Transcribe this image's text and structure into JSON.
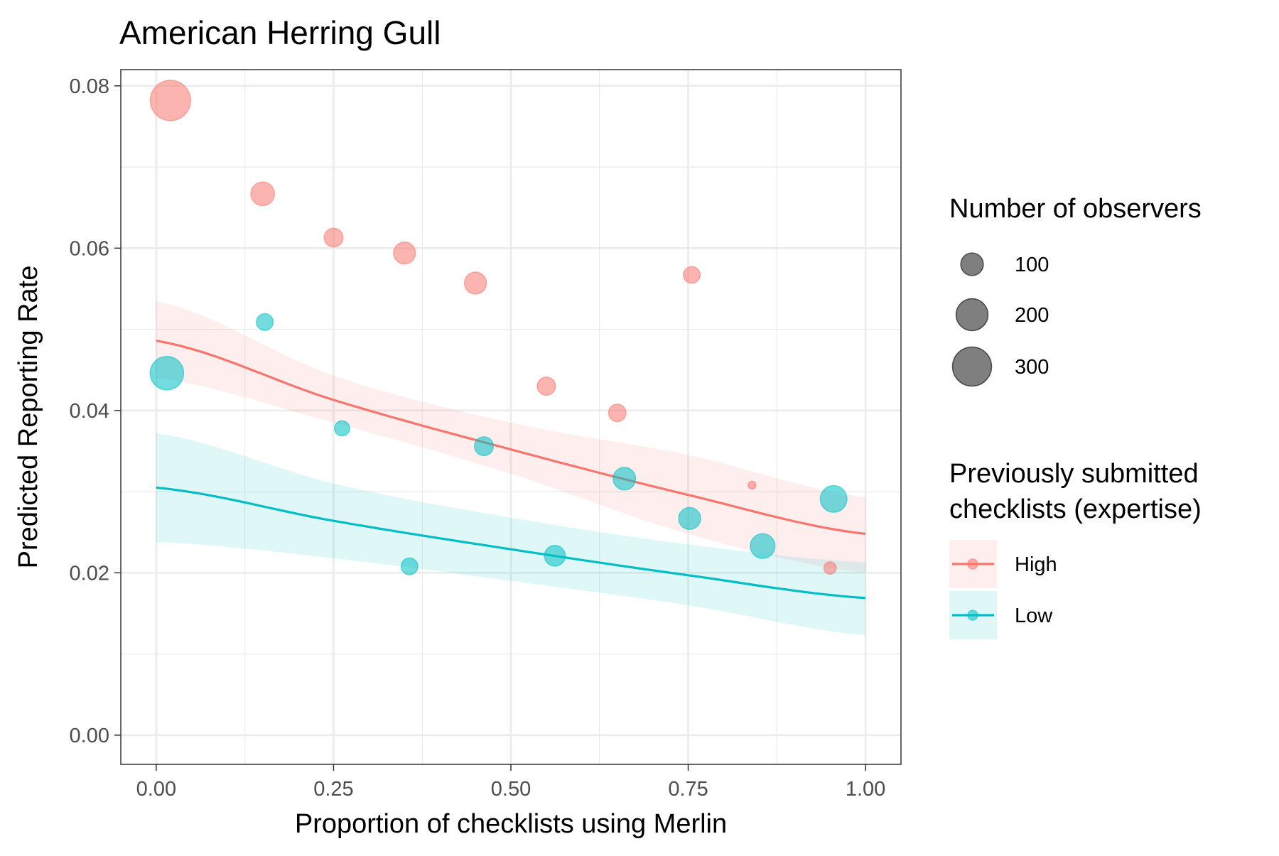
{
  "chart_data": {
    "type": "scatter",
    "title": "American Herring Gull",
    "xlabel": "Proportion of checklists using Merlin",
    "ylabel": "Predicted Reporting Rate",
    "xlim": [
      -0.05,
      1.05
    ],
    "ylim": [
      -0.0036,
      0.082
    ],
    "x_ticks": [
      0.0,
      0.25,
      0.5,
      0.75,
      1.0
    ],
    "x_tick_labels": [
      "0.00",
      "0.25",
      "0.50",
      "0.75",
      "1.00"
    ],
    "y_ticks": [
      0.0,
      0.02,
      0.04,
      0.06,
      0.08
    ],
    "y_tick_labels": [
      "0.00",
      "0.02",
      "0.04",
      "0.06",
      "0.08"
    ],
    "grid": true,
    "size_legend": {
      "title": "Number of observers",
      "entries": [
        {
          "label": "100",
          "value": 100
        },
        {
          "label": "200",
          "value": 200
        },
        {
          "label": "300",
          "value": 300
        }
      ]
    },
    "color_legend": {
      "title_lines": [
        "Previously submitted",
        "checklists (expertise)"
      ],
      "entries": [
        {
          "label": "High",
          "color": "#F8766D"
        },
        {
          "label": "Low",
          "color": "#00BFC4"
        }
      ]
    },
    "series": [
      {
        "name": "High",
        "color": "#F8766D",
        "points": [
          {
            "x": 0.02,
            "y": 0.0782,
            "n": 320
          },
          {
            "x": 0.15,
            "y": 0.0667,
            "n": 110
          },
          {
            "x": 0.25,
            "y": 0.0613,
            "n": 70
          },
          {
            "x": 0.35,
            "y": 0.0594,
            "n": 95
          },
          {
            "x": 0.45,
            "y": 0.0557,
            "n": 95
          },
          {
            "x": 0.55,
            "y": 0.043,
            "n": 65
          },
          {
            "x": 0.65,
            "y": 0.0397,
            "n": 60
          },
          {
            "x": 0.755,
            "y": 0.0567,
            "n": 55
          },
          {
            "x": 0.84,
            "y": 0.0308,
            "n": 12
          },
          {
            "x": 0.95,
            "y": 0.0206,
            "n": 30
          }
        ],
        "fit_x": [
          0.0,
          0.25,
          0.5,
          0.75,
          1.0
        ],
        "fit_y": [
          0.0486,
          0.0413,
          0.0352,
          0.0296,
          0.0248
        ],
        "ci_lower": [
          0.044,
          0.0385,
          0.0322,
          0.0248,
          0.02
        ],
        "ci_upper": [
          0.0535,
          0.0443,
          0.0385,
          0.0345,
          0.0293
        ]
      },
      {
        "name": "Low",
        "color": "#00BFC4",
        "points": [
          {
            "x": 0.015,
            "y": 0.0446,
            "n": 220
          },
          {
            "x": 0.153,
            "y": 0.0509,
            "n": 55
          },
          {
            "x": 0.262,
            "y": 0.0378,
            "n": 45
          },
          {
            "x": 0.357,
            "y": 0.0208,
            "n": 55
          },
          {
            "x": 0.462,
            "y": 0.0356,
            "n": 70
          },
          {
            "x": 0.562,
            "y": 0.0221,
            "n": 85
          },
          {
            "x": 0.66,
            "y": 0.0316,
            "n": 100
          },
          {
            "x": 0.752,
            "y": 0.0267,
            "n": 95
          },
          {
            "x": 0.855,
            "y": 0.0233,
            "n": 120
          },
          {
            "x": 0.955,
            "y": 0.0291,
            "n": 140
          }
        ],
        "fit_x": [
          0.0,
          0.25,
          0.5,
          0.75,
          1.0
        ],
        "fit_y": [
          0.0305,
          0.0264,
          0.0229,
          0.0197,
          0.0169
        ],
        "ci_lower": [
          0.0238,
          0.0218,
          0.019,
          0.016,
          0.0123
        ],
        "ci_upper": [
          0.0372,
          0.031,
          0.0268,
          0.0235,
          0.0213
        ]
      }
    ]
  }
}
